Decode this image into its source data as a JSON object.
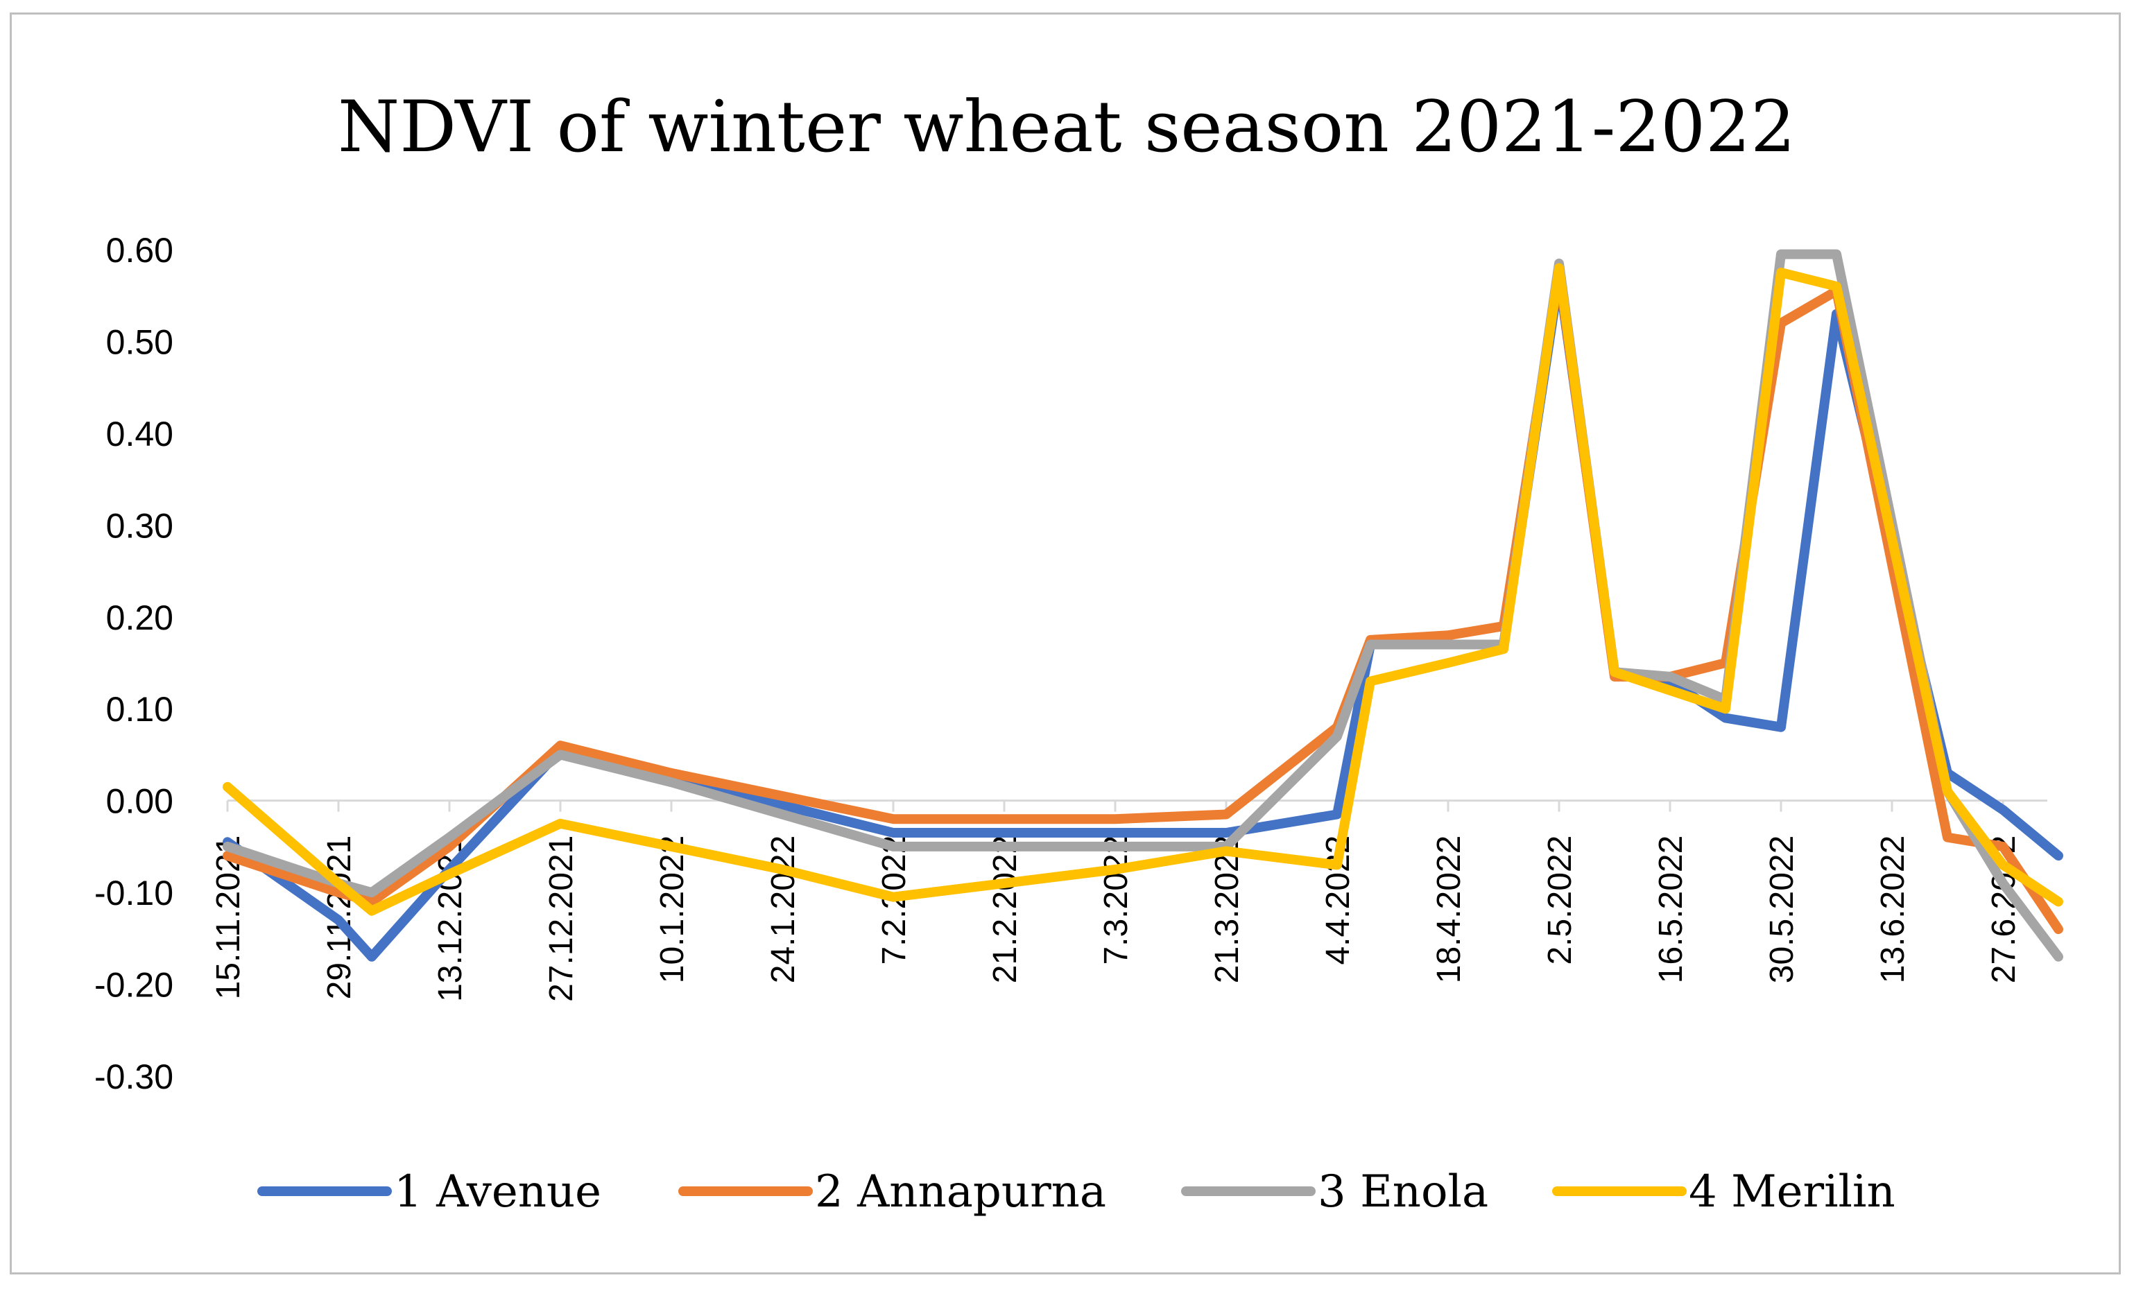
{
  "chart_data": {
    "type": "line",
    "title": "NDVI of winter wheat season 2021-2022",
    "xlabel": "",
    "ylabel": "",
    "ylim": [
      -0.3,
      0.6
    ],
    "yticks": [
      "0.60",
      "0.50",
      "0.40",
      "0.30",
      "0.20",
      "0.10",
      "0.00",
      "-0.10",
      "-0.20",
      "-0.30"
    ],
    "ytick_values": [
      0.6,
      0.5,
      0.4,
      0.3,
      0.2,
      0.1,
      0.0,
      -0.1,
      -0.2,
      -0.3
    ],
    "categories": [
      "15.11.2021",
      "29.11.2021",
      "13.12.2021",
      "27.12.2021",
      "10.1.2022",
      "24.1.2022",
      "7.2.2022",
      "21.2.2022",
      "7.3.2022",
      "21.3.2022",
      "4.4.2022",
      "18.4.2022",
      "2.5.2022",
      "16.5.2022",
      "30.5.2022",
      "13.6.2022",
      "27.6.2022"
    ],
    "series": [
      {
        "name": "1 Avenue",
        "color": "#4472C4",
        "points": [
          [
            0,
            -0.045
          ],
          [
            1,
            -0.13
          ],
          [
            1.3,
            -0.17
          ],
          [
            2,
            -0.075
          ],
          [
            3,
            0.055
          ],
          [
            4,
            0.025
          ],
          [
            5,
            -0.005
          ],
          [
            6,
            -0.035
          ],
          [
            7,
            -0.035
          ],
          [
            8,
            -0.035
          ],
          [
            9,
            -0.035
          ],
          [
            10,
            -0.015
          ],
          [
            10.3,
            0.17
          ],
          [
            11,
            0.17
          ],
          [
            11.5,
            0.17
          ],
          [
            12,
            0.57
          ],
          [
            12.5,
            0.14
          ],
          [
            13,
            0.13
          ],
          [
            13.5,
            0.09
          ],
          [
            14,
            0.08
          ],
          [
            14.5,
            0.53
          ],
          [
            15.5,
            0.03
          ],
          [
            16,
            -0.01
          ],
          [
            16.5,
            -0.06
          ]
        ]
      },
      {
        "name": "2 Annapurna",
        "color": "#ED7D31",
        "points": [
          [
            0,
            -0.06
          ],
          [
            1,
            -0.1
          ],
          [
            1.3,
            -0.11
          ],
          [
            2,
            -0.05
          ],
          [
            3,
            0.06
          ],
          [
            4,
            0.03
          ],
          [
            5,
            0.005
          ],
          [
            6,
            -0.02
          ],
          [
            7,
            -0.02
          ],
          [
            8,
            -0.02
          ],
          [
            9,
            -0.015
          ],
          [
            10,
            0.08
          ],
          [
            10.3,
            0.175
          ],
          [
            11,
            0.18
          ],
          [
            11.5,
            0.19
          ],
          [
            12,
            0.575
          ],
          [
            12.5,
            0.135
          ],
          [
            13,
            0.135
          ],
          [
            13.5,
            0.15
          ],
          [
            14,
            0.52
          ],
          [
            14.5,
            0.555
          ],
          [
            15.5,
            -0.04
          ],
          [
            16,
            -0.05
          ],
          [
            16.5,
            -0.14
          ]
        ]
      },
      {
        "name": "3 Enola",
        "color": "#A5A5A5",
        "points": [
          [
            0,
            -0.05
          ],
          [
            1,
            -0.09
          ],
          [
            1.3,
            -0.1
          ],
          [
            2,
            -0.04
          ],
          [
            3,
            0.05
          ],
          [
            4,
            0.02
          ],
          [
            5,
            -0.015
          ],
          [
            6,
            -0.05
          ],
          [
            7,
            -0.05
          ],
          [
            8,
            -0.05
          ],
          [
            9,
            -0.05
          ],
          [
            10,
            0.07
          ],
          [
            10.3,
            0.17
          ],
          [
            11,
            0.17
          ],
          [
            11.5,
            0.17
          ],
          [
            12,
            0.585
          ],
          [
            12.5,
            0.14
          ],
          [
            13,
            0.135
          ],
          [
            13.5,
            0.11
          ],
          [
            14,
            0.595
          ],
          [
            14.5,
            0.595
          ],
          [
            15.5,
            0.01
          ],
          [
            16,
            -0.09
          ],
          [
            16.5,
            -0.17
          ]
        ]
      },
      {
        "name": "4 Merilin",
        "color": "#FFC000",
        "points": [
          [
            0,
            0.015
          ],
          [
            1,
            -0.09
          ],
          [
            1.3,
            -0.12
          ],
          [
            2,
            -0.08
          ],
          [
            3,
            -0.025
          ],
          [
            4,
            -0.05
          ],
          [
            5,
            -0.075
          ],
          [
            6,
            -0.105
          ],
          [
            7,
            -0.09
          ],
          [
            8,
            -0.075
          ],
          [
            9,
            -0.055
          ],
          [
            10,
            -0.07
          ],
          [
            10.3,
            0.13
          ],
          [
            11,
            0.15
          ],
          [
            11.5,
            0.165
          ],
          [
            12,
            0.58
          ],
          [
            12.5,
            0.14
          ],
          [
            13,
            0.12
          ],
          [
            13.5,
            0.1
          ],
          [
            14,
            0.575
          ],
          [
            14.5,
            0.56
          ],
          [
            15.5,
            0.01
          ],
          [
            16,
            -0.07
          ],
          [
            16.5,
            -0.11
          ]
        ]
      }
    ],
    "legend_position": "bottom",
    "grid": false
  }
}
